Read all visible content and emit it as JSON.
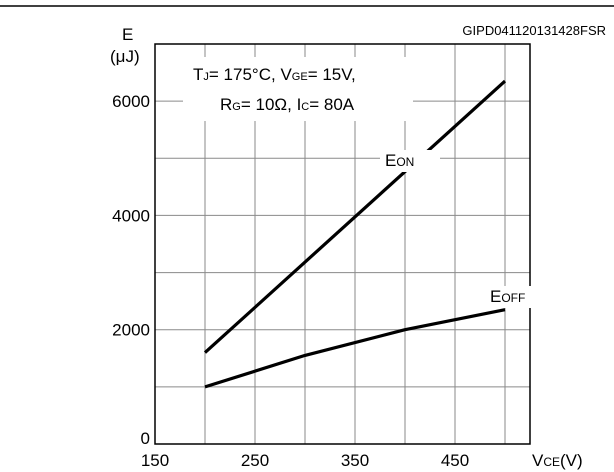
{
  "chart_data": {
    "type": "line",
    "ref_code": "GIPD041120131428FSR",
    "y_label": {
      "main": "E",
      "unit": "(μJ)"
    },
    "x_label": {
      "main": "V",
      "sub": "CE",
      "unit": "(V)"
    },
    "conditions": {
      "line1": [
        {
          "t": "T",
          "sub": "J",
          "rest": "= 175°C, "
        },
        {
          "t": "V",
          "sub": "GE",
          "rest": "= 15V,"
        }
      ],
      "line2": [
        {
          "t": "R",
          "sub": "G",
          "rest": "= 10Ω, "
        },
        {
          "t": "I",
          "sub": "C",
          "rest": "= 80A"
        }
      ]
    },
    "xlim": [
      150,
      525
    ],
    "ylim": [
      0,
      7000
    ],
    "x_ticks": [
      150,
      250,
      350,
      450
    ],
    "y_ticks": [
      0,
      2000,
      4000,
      6000
    ],
    "grid": true,
    "series": [
      {
        "name": "EON",
        "name_main": "E",
        "name_sub": "ON",
        "color": "#000000",
        "x": [
          200,
          500
        ],
        "y": [
          1600,
          6350
        ]
      },
      {
        "name": "EOFF",
        "name_main": "E",
        "name_sub": "OFF",
        "color": "#000000",
        "x": [
          200,
          300,
          400,
          500
        ],
        "y": [
          1000,
          1550,
          2000,
          2350
        ]
      }
    ]
  }
}
